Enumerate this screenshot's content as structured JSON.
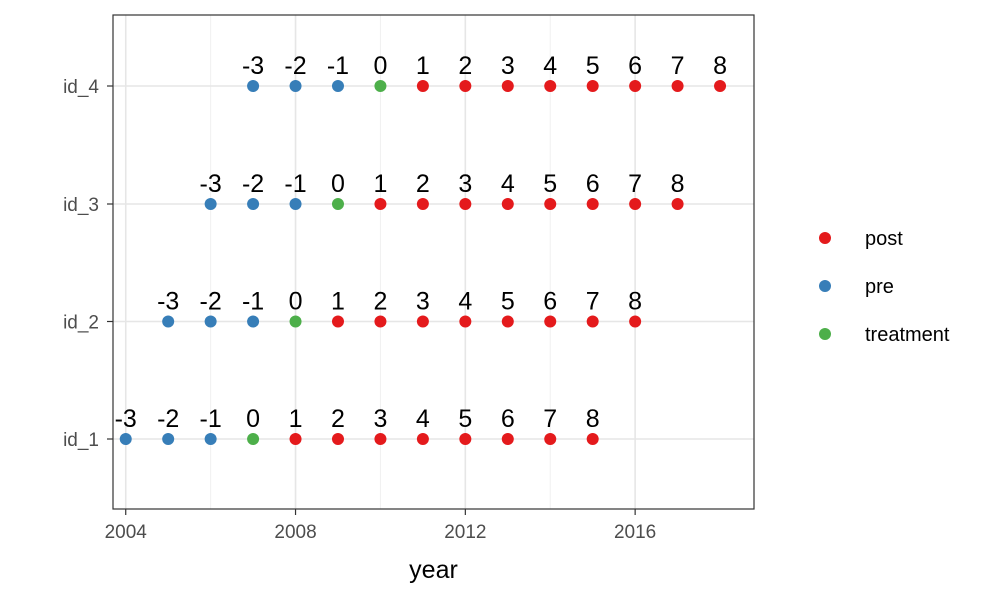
{
  "chart_data": {
    "type": "scatter",
    "title": "",
    "xlabel": "year",
    "ylabel": "",
    "xlim": [
      2003.7,
      2018.8
    ],
    "x_ticks": [
      {
        "value": 2004,
        "label": "2004"
      },
      {
        "value": 2008,
        "label": "2008"
      },
      {
        "value": 2012,
        "label": "2012"
      },
      {
        "value": 2016,
        "label": "2016"
      }
    ],
    "y_categories": [
      "id_1",
      "id_2",
      "id_3",
      "id_4"
    ],
    "grid": true,
    "legend_position": "right",
    "legend": [
      {
        "name": "post",
        "color": "#E41A1C"
      },
      {
        "name": "pre",
        "color": "#377EB8"
      },
      {
        "name": "treatment",
        "color": "#4DAF4A"
      }
    ],
    "series": [
      {
        "id": "id_1",
        "points": [
          {
            "year": 2004,
            "label": "-3",
            "group": "pre"
          },
          {
            "year": 2005,
            "label": "-2",
            "group": "pre"
          },
          {
            "year": 2006,
            "label": "-1",
            "group": "pre"
          },
          {
            "year": 2007,
            "label": "0",
            "group": "treatment"
          },
          {
            "year": 2008,
            "label": "1",
            "group": "post"
          },
          {
            "year": 2009,
            "label": "2",
            "group": "post"
          },
          {
            "year": 2010,
            "label": "3",
            "group": "post"
          },
          {
            "year": 2011,
            "label": "4",
            "group": "post"
          },
          {
            "year": 2012,
            "label": "5",
            "group": "post"
          },
          {
            "year": 2013,
            "label": "6",
            "group": "post"
          },
          {
            "year": 2014,
            "label": "7",
            "group": "post"
          },
          {
            "year": 2015,
            "label": "8",
            "group": "post"
          }
        ]
      },
      {
        "id": "id_2",
        "points": [
          {
            "year": 2005,
            "label": "-3",
            "group": "pre"
          },
          {
            "year": 2006,
            "label": "-2",
            "group": "pre"
          },
          {
            "year": 2007,
            "label": "-1",
            "group": "pre"
          },
          {
            "year": 2008,
            "label": "0",
            "group": "treatment"
          },
          {
            "year": 2009,
            "label": "1",
            "group": "post"
          },
          {
            "year": 2010,
            "label": "2",
            "group": "post"
          },
          {
            "year": 2011,
            "label": "3",
            "group": "post"
          },
          {
            "year": 2012,
            "label": "4",
            "group": "post"
          },
          {
            "year": 2013,
            "label": "5",
            "group": "post"
          },
          {
            "year": 2014,
            "label": "6",
            "group": "post"
          },
          {
            "year": 2015,
            "label": "7",
            "group": "post"
          },
          {
            "year": 2016,
            "label": "8",
            "group": "post"
          }
        ]
      },
      {
        "id": "id_3",
        "points": [
          {
            "year": 2006,
            "label": "-3",
            "group": "pre"
          },
          {
            "year": 2007,
            "label": "-2",
            "group": "pre"
          },
          {
            "year": 2008,
            "label": "-1",
            "group": "pre"
          },
          {
            "year": 2009,
            "label": "0",
            "group": "treatment"
          },
          {
            "year": 2010,
            "label": "1",
            "group": "post"
          },
          {
            "year": 2011,
            "label": "2",
            "group": "post"
          },
          {
            "year": 2012,
            "label": "3",
            "group": "post"
          },
          {
            "year": 2013,
            "label": "4",
            "group": "post"
          },
          {
            "year": 2014,
            "label": "5",
            "group": "post"
          },
          {
            "year": 2015,
            "label": "6",
            "group": "post"
          },
          {
            "year": 2016,
            "label": "7",
            "group": "post"
          },
          {
            "year": 2017,
            "label": "8",
            "group": "post"
          }
        ]
      },
      {
        "id": "id_4",
        "points": [
          {
            "year": 2007,
            "label": "-3",
            "group": "pre"
          },
          {
            "year": 2008,
            "label": "-2",
            "group": "pre"
          },
          {
            "year": 2009,
            "label": "-1",
            "group": "pre"
          },
          {
            "year": 2010,
            "label": "0",
            "group": "treatment"
          },
          {
            "year": 2011,
            "label": "1",
            "group": "post"
          },
          {
            "year": 2012,
            "label": "2",
            "group": "post"
          },
          {
            "year": 2013,
            "label": "3",
            "group": "post"
          },
          {
            "year": 2014,
            "label": "4",
            "group": "post"
          },
          {
            "year": 2015,
            "label": "5",
            "group": "post"
          },
          {
            "year": 2016,
            "label": "6",
            "group": "post"
          },
          {
            "year": 2017,
            "label": "7",
            "group": "post"
          },
          {
            "year": 2018,
            "label": "8",
            "group": "post"
          }
        ]
      }
    ]
  }
}
